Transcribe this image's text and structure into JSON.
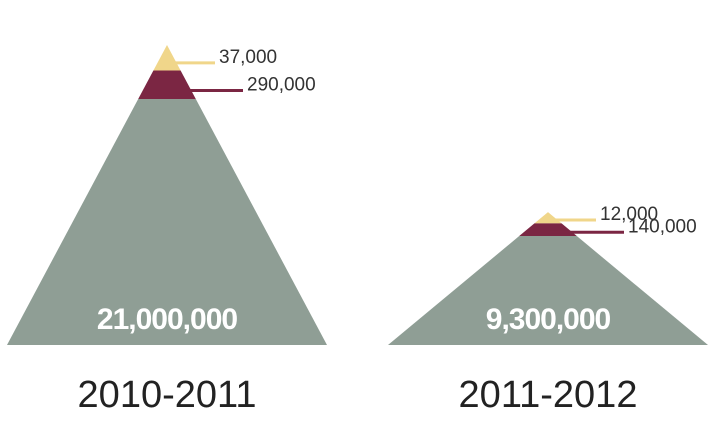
{
  "chart_data": {
    "type": "pyramid",
    "categories": [
      "2010-2011",
      "2011-2012"
    ],
    "series": [
      {
        "color": "#f0d68a",
        "values": [
          37000,
          12000
        ],
        "value_labels": [
          "37,000",
          "12,000"
        ]
      },
      {
        "color": "#7b2643",
        "values": [
          290000,
          140000
        ],
        "value_labels": [
          "290,000",
          "140,000"
        ]
      },
      {
        "color": "#8f9e95",
        "values": [
          21000000,
          9300000
        ],
        "value_labels": [
          "21,000,000",
          "9,300,000"
        ]
      }
    ]
  }
}
